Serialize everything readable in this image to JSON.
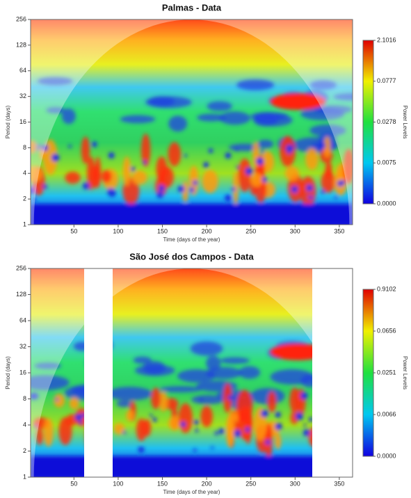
{
  "chart_data": [
    {
      "type": "heatmap",
      "title": "Palmas - Data",
      "xlabel": "Time (days of the year)",
      "ylabel": "Period (days)",
      "xlim": [
        1,
        365
      ],
      "xticks": [
        50,
        100,
        150,
        200,
        250,
        300,
        350
      ],
      "ylim": [
        1,
        256
      ],
      "yticks": [
        1,
        2,
        4,
        8,
        16,
        32,
        64,
        128,
        256
      ],
      "y_log_base": 2,
      "colorbar_label": "Power Levels",
      "colorbar_ticks": [
        {
          "value": 0,
          "label": "0.0000"
        },
        0.0075,
        0.0278,
        0.0777,
        2.1016
      ]
    },
    {
      "type": "heatmap",
      "title": "São José dos Campos - Data",
      "xlabel": "Time (days of the year)",
      "ylabel": "Period (days)",
      "xlim": [
        1,
        365
      ],
      "xticks": [
        50,
        100,
        150,
        200,
        250,
        300,
        350
      ],
      "ylim": [
        1,
        256
      ],
      "yticks": [
        1,
        2,
        4,
        8,
        16,
        32,
        64,
        128,
        256
      ],
      "y_log_base": 2,
      "colorbar_label": "Power Levels",
      "colorbar_ticks": [
        {
          "value": 0,
          "label": "0.0000"
        },
        0.0066,
        0.0251,
        0.0656,
        0.9102
      ]
    }
  ]
}
